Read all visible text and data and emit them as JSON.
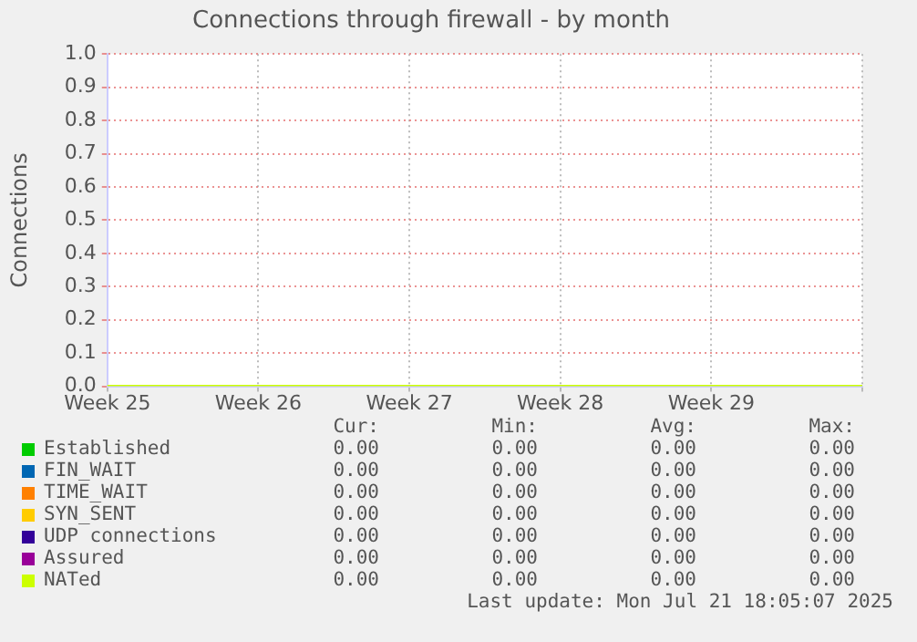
{
  "chart_data": {
    "type": "line",
    "title": "Connections through firewall - by month",
    "ylabel": "Connections",
    "categories": [
      "Week 25",
      "Week 26",
      "Week 27",
      "Week 28",
      "Week 29",
      null
    ],
    "ylim": [
      0,
      1
    ],
    "yticks": [
      {
        "value": 0,
        "label": "0.0"
      },
      0.1,
      0.2,
      0.3,
      0.4,
      0.5,
      0.6,
      0.7,
      0.8,
      0.9,
      {
        "value": 1,
        "label": "1.0"
      }
    ],
    "grid": true,
    "legend": "bottom",
    "marker": "none",
    "line_style": "solid",
    "series": [
      {
        "name": "Established",
        "color": "#00cc00",
        "values": [
          null,
          null,
          null,
          null,
          null,
          null
        ]
      },
      {
        "name": "FIN_WAIT",
        "color": "#0066b3",
        "values": [
          null,
          null,
          null,
          null,
          null,
          null
        ]
      },
      {
        "name": "TIME_WAIT",
        "color": "#ff8000",
        "values": [
          null,
          null,
          null,
          null,
          null,
          null
        ]
      },
      {
        "name": "SYN_SENT",
        "color": "#ffcc00",
        "values": [
          null,
          null,
          null,
          null,
          null,
          null
        ]
      },
      {
        "name": "UDP connections",
        "color": "#330099",
        "values": [
          null,
          null,
          null,
          null,
          null,
          null
        ]
      },
      {
        "name": "Assured",
        "color": "#990099",
        "values": [
          null,
          null,
          null,
          null,
          null,
          null
        ]
      },
      {
        "name": "NATed",
        "color": "#ccff00",
        "values": [
          0,
          0,
          0,
          0,
          0,
          0
        ]
      }
    ],
    "annotations": [
      "Cur:",
      "Min:",
      "Avg:",
      "Max:",
      "0.00",
      "0.00",
      "0.00",
      "0.00",
      "0.00",
      "0.00",
      "0.00",
      "0.00",
      "0.00",
      "0.00",
      "0.00",
      "0.00",
      "0.00",
      "0.00",
      "0.00",
      "0.00",
      "0.00",
      "0.00",
      "0.00",
      "0.00",
      "0.00",
      "0.00",
      "0.00",
      "0.00",
      "0.00",
      "0.00",
      "0.00",
      "0.00",
      "Last update: Mon Jul 21 18:05:07 2025"
    ]
  }
}
